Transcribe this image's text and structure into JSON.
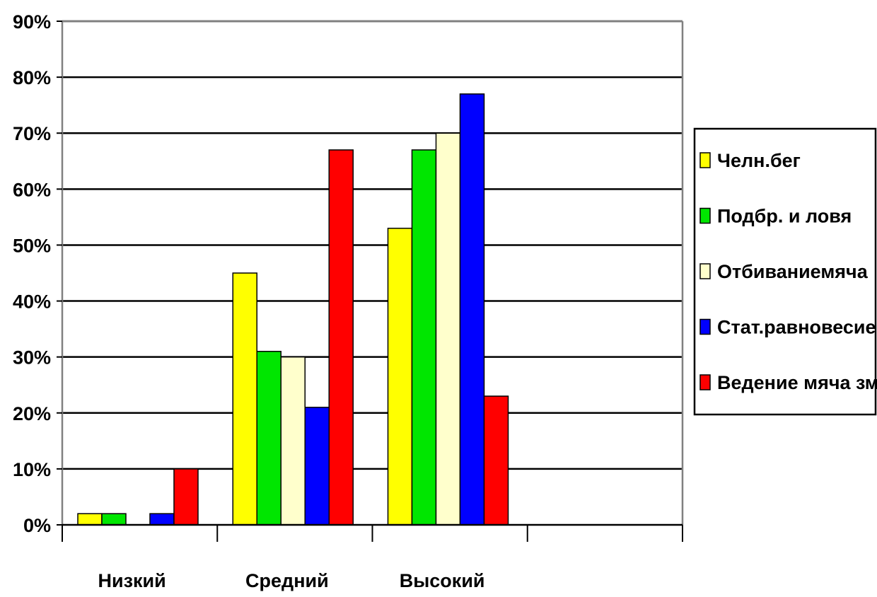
{
  "chart_data": {
    "type": "bar",
    "title": "",
    "xlabel": "",
    "ylabel": "",
    "categories": [
      "Низкий",
      "Средний",
      "Высокий",
      ""
    ],
    "series": [
      {
        "name": "Челн.бег",
        "color": "#ffff00",
        "values": [
          2,
          45,
          53,
          null
        ]
      },
      {
        "name": "Подбр.  и ловя",
        "color": "#00e600",
        "values": [
          2,
          31,
          67,
          null
        ]
      },
      {
        "name": "Отбиваниемяча",
        "color": "#ffffcc",
        "values": [
          null,
          30,
          70,
          null
        ]
      },
      {
        "name": "Стат.равновесие",
        "color": "#0000ff",
        "values": [
          2,
          21,
          77,
          null
        ]
      },
      {
        "name": "Ведение мяча зм.",
        "color": "#ff0000",
        "values": [
          10,
          67,
          23,
          null
        ]
      }
    ],
    "ylim": [
      0,
      90
    ],
    "yticks": [
      "0%",
      "10%",
      "20%",
      "30%",
      "40%",
      "50%",
      "60%",
      "70%",
      "80%",
      "90%"
    ],
    "y_unit": "%",
    "grid": true,
    "legend_position": "right"
  }
}
